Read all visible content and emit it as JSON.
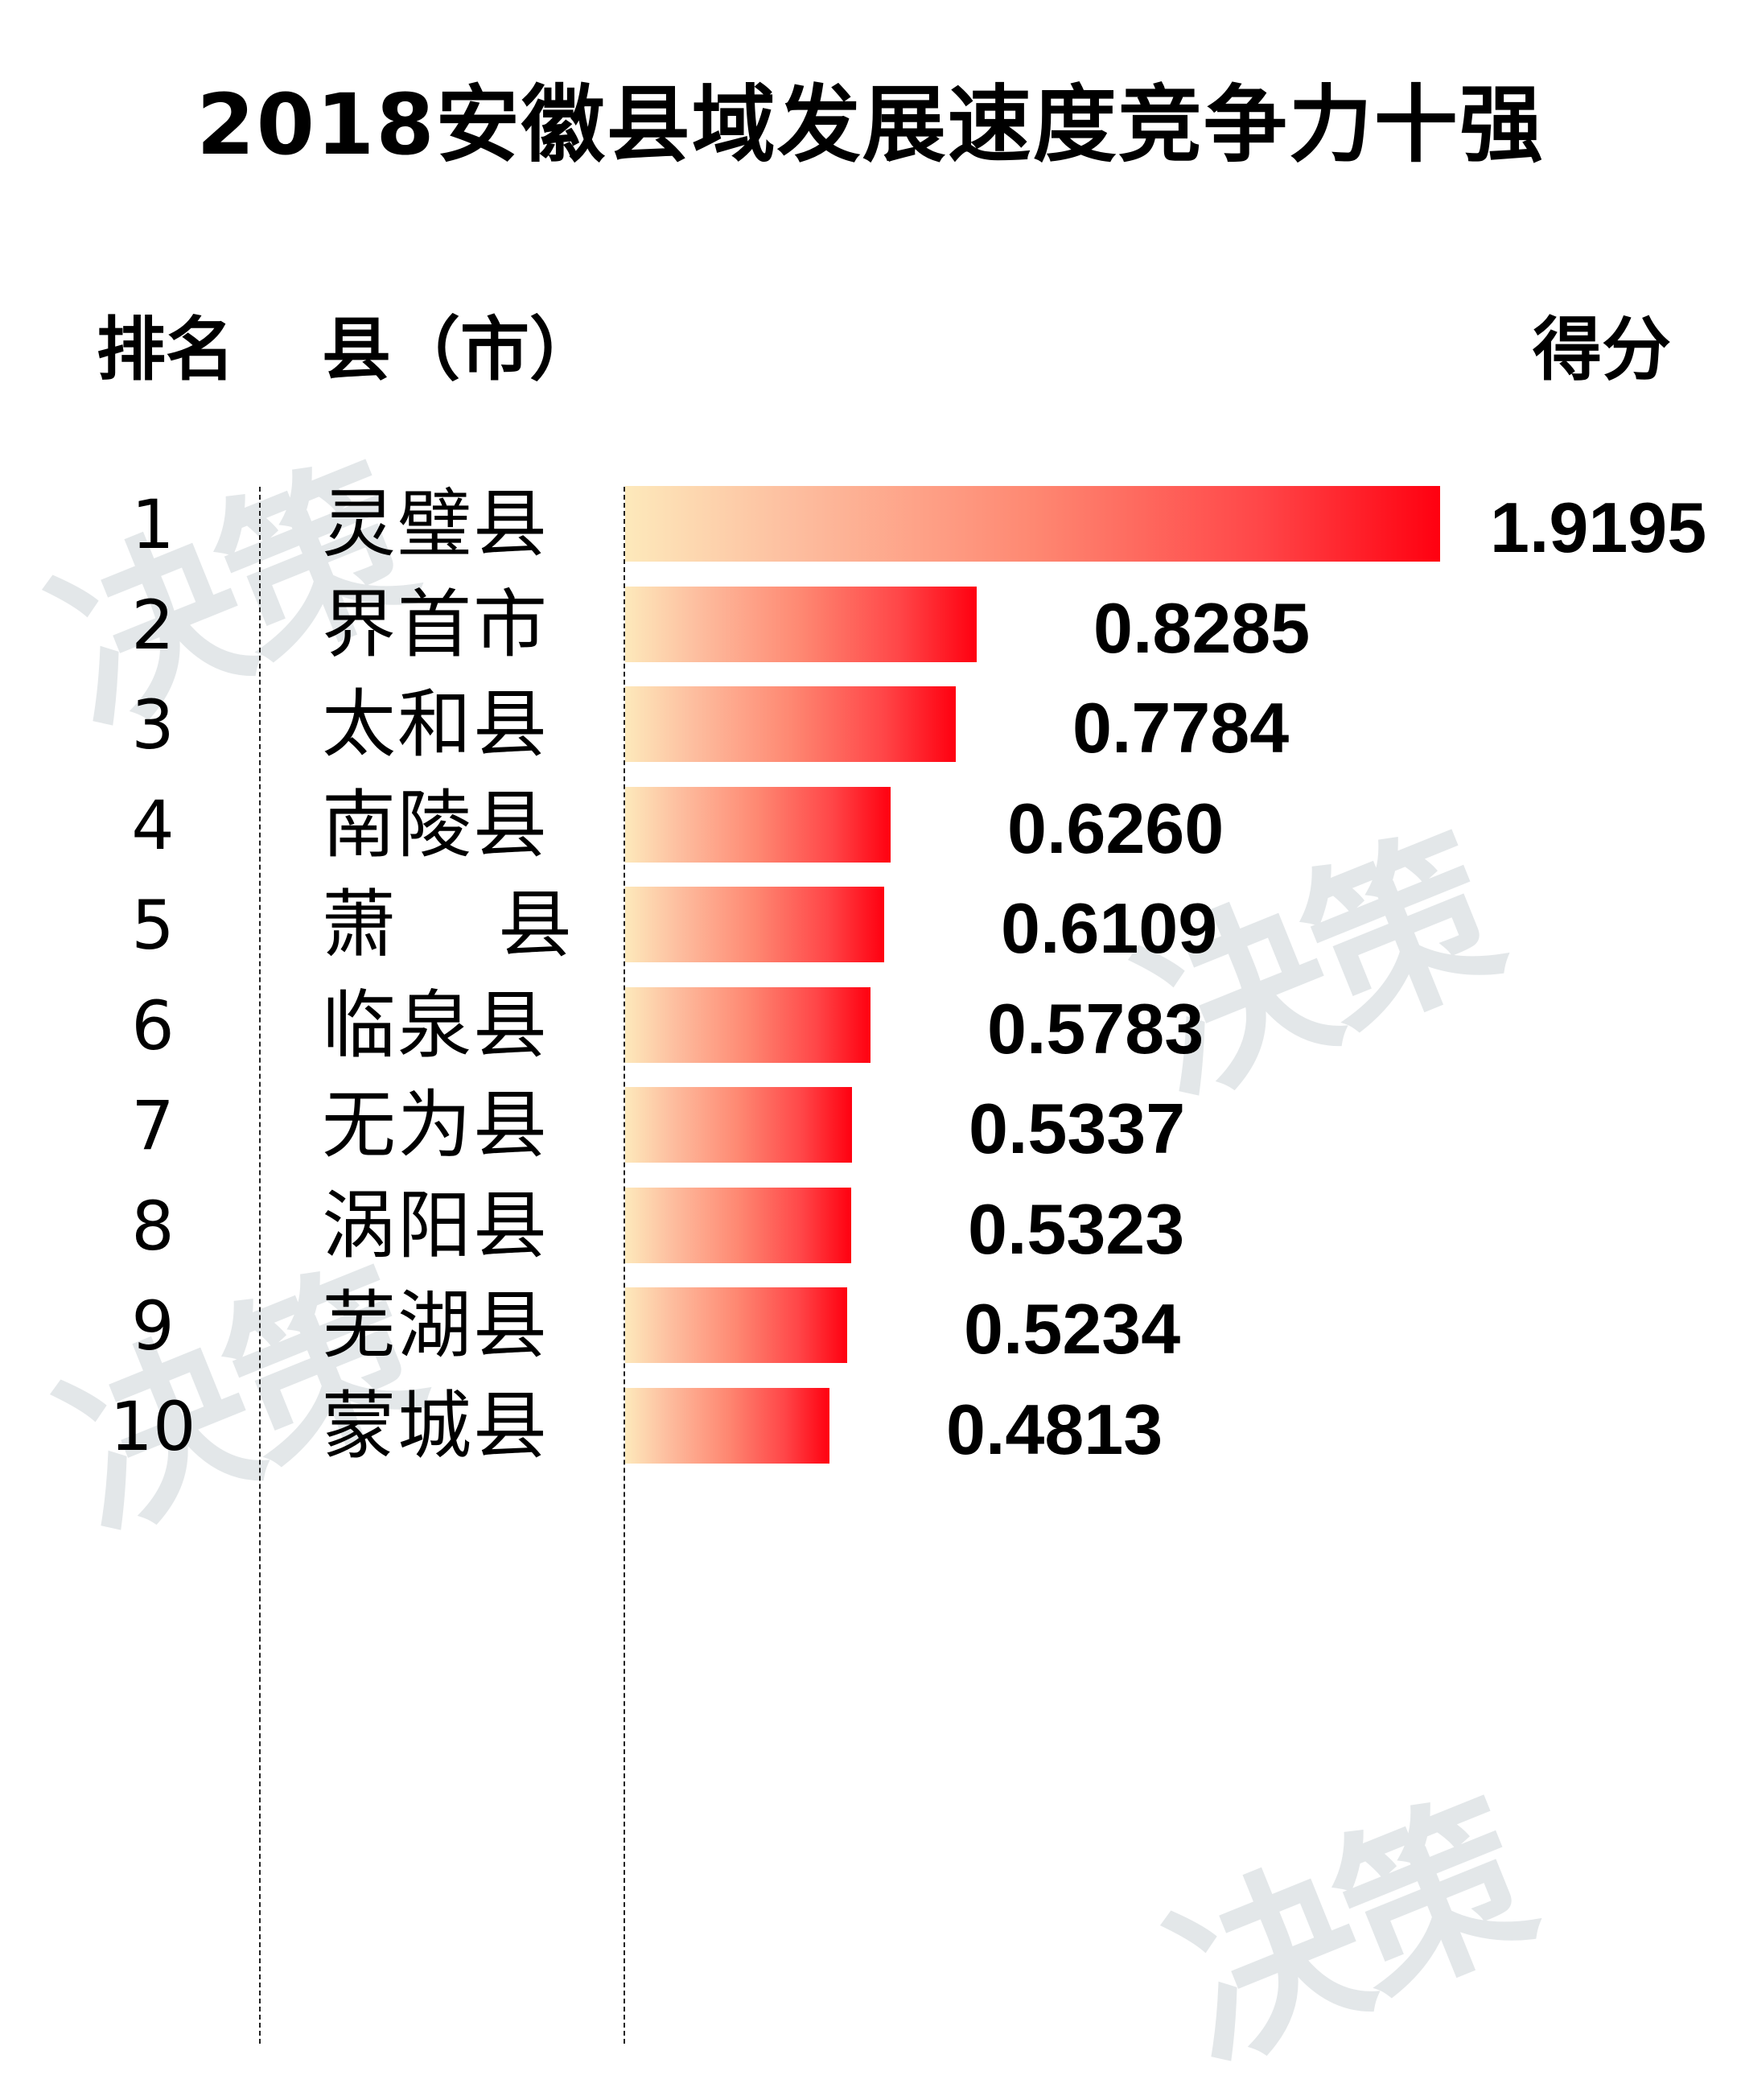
{
  "title": "2018安徽县域发展速度竞争力十强",
  "headers": {
    "rank": "排名",
    "county": "县（市）",
    "score": "得分"
  },
  "watermarks": [
    "决策",
    "决策",
    "决策",
    "决策"
  ],
  "rows": [
    {
      "rank": "1",
      "county": "灵璧县",
      "score": "1.9195"
    },
    {
      "rank": "2",
      "county": "界首市",
      "score": "0.8285"
    },
    {
      "rank": "3",
      "county": "太和县",
      "score": "0.7784"
    },
    {
      "rank": "4",
      "county": "南陵县",
      "score": "0.6260"
    },
    {
      "rank": "5",
      "county": "萧    县",
      "score": "0.6109"
    },
    {
      "rank": "6",
      "county": "临泉县",
      "score": "0.5783"
    },
    {
      "rank": "7",
      "county": "无为县",
      "score": "0.5337"
    },
    {
      "rank": "8",
      "county": "涡阳县",
      "score": "0.5323"
    },
    {
      "rank": "9",
      "county": "芜湖县",
      "score": "0.5234"
    },
    {
      "rank": "10",
      "county": "蒙城县",
      "score": "0.4813"
    }
  ],
  "colors": {
    "bar_start": "#fde9bb",
    "bar_end": "#ff0010",
    "watermark": "#e3e7e9",
    "text": "#000000"
  },
  "chart_data": {
    "type": "bar",
    "orientation": "horizontal",
    "title": "2018安徽县域发展速度竞争力十强",
    "xlabel": "得分",
    "ylabel": "县（市）",
    "categories": [
      "灵璧县",
      "界首市",
      "太和县",
      "南陵县",
      "萧县",
      "临泉县",
      "无为县",
      "涡阳县",
      "芜湖县",
      "蒙城县"
    ],
    "ranks": [
      1,
      2,
      3,
      4,
      5,
      6,
      7,
      8,
      9,
      10
    ],
    "values": [
      1.9195,
      0.8285,
      0.7784,
      0.626,
      0.6109,
      0.5783,
      0.5337,
      0.5323,
      0.5234,
      0.4813
    ],
    "grid": false,
    "legend": null,
    "data_labels": true
  }
}
